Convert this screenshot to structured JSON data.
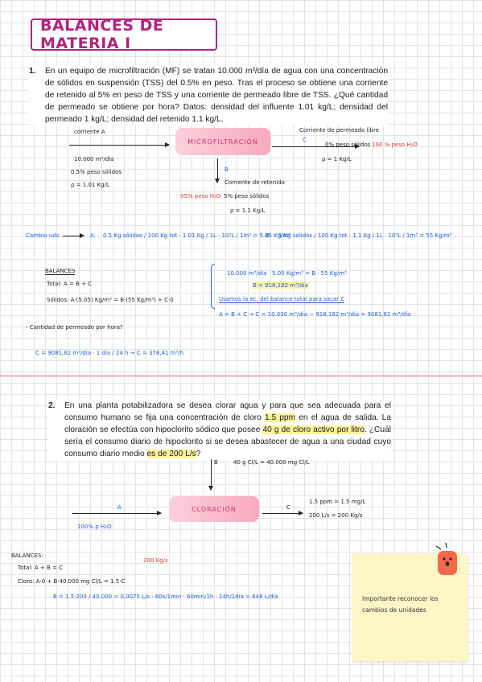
{
  "title": "BALANCES DE MATERIA Ⅰ",
  "problem1": {
    "number": "1.",
    "text": "En un equipo de microfiltración (MF) se tratan 10.000 m³/día de agua con una concentración de sólidos en suspensión (TSS) del 0.5% en peso. Tras el proceso se obtiene una corriente de retenido al 5% en peso de TSS y una corriente de permeado libre de TSS. ¿Qué cantidad de permeado se obtiene por hora? Datos: densidad del influente 1.01 kg/L; densidad del permeado 1 kg/L; densidad del retenido 1.1 kg/L."
  },
  "diagram1": {
    "box": "MICROFILTRACIÓN",
    "inlet_label": "corriente A",
    "inlet_flow": "10.000 m³/día",
    "inlet_solids": "0.5% peso sólidos",
    "inlet_density": "ρ = 1.01 Kg/L",
    "out_c_label": "Corriente de permeado libre",
    "out_c_letter": "C",
    "out_c_comp_1": "0% peso sólidos",
    "out_c_comp_2": "100 % peso H₂O",
    "out_c_density": "ρ = 1 Kg/L",
    "out_b_letter": "B",
    "out_b_label": "Corriente de retenido",
    "out_b_comp_1": "95% peso H₂O",
    "out_b_comp_2": "5% peso sólidos",
    "out_b_density": "ρ = 1.1 Kg/L"
  },
  "units_change": {
    "label": "Cambio uds",
    "a_letter": "A:",
    "a_calc": "0.5 Kg sólidos / 100 Kg tot · 1.01 Kg / 1L · 10³L / 1m³ = 5.05 Kg/m³",
    "b_letter": "B:",
    "b_calc": "5 Kg sólidos / 100 Kg tot · 1.1 Kg / 1L · 10³L / 1m³ = 55 Kg/m³"
  },
  "balances1": {
    "heading": "BALANCES",
    "total": "Total: A = B + C",
    "solids": "Sólidos: A·(5.05) Kg/m³ = B·(55 Kg/m³) + C·0",
    "eq1": "10.000 m³/día · 5.05 Kg/m³ = B · 55 Kg/m³",
    "eq_b": "B = 918,182 m³/día",
    "eq_note": "Usamos la ec. del balance total para sacar C",
    "eq_c": "A = B + C → C = 10.000 m³/día − 918,182 m³/día = 9081,82 m³/día",
    "question": "- Cantidad de permeado por hora?",
    "answer": "C = 9081,82 m³/día · 1 día / 24 h → C = 378,41 m³/h"
  },
  "problem2": {
    "number": "2.",
    "text_a": "En una planta potabilizadora se desea clorar agua y para que sea adecuada para el consumo humano se fija una concentración de cloro ",
    "hl_1": "1.5 ppm",
    "text_b": " en el agua de salida. La cloración se efectúa con hipoclorito sódico que posee ",
    "hl_2": "40 g de cloro activo por litro",
    "text_c": ". ¿Cuál sería el consumo diario de hipoclorito si se desea abastecer de agua a una ciudad cuyo consumo diario medio ",
    "hl_3": "es de 200 L/s",
    "text_d": "?"
  },
  "diagram2": {
    "box": "CLORACIÓN",
    "b_letter": "B",
    "b_value": "40 g Cl/L = 40.000 mg Cl/L",
    "a_letter": "A",
    "a_comp": "100% p H₂O",
    "c_letter": "C",
    "c_ppm": "1.5 ppm = 1.5 mg/L",
    "c_flow": "200 L/s = 200 Kg/s"
  },
  "balances2": {
    "heading": "BALANCES:",
    "total": "Total: A + B = C",
    "chlorine": "Cloro: A·0 + B·40.000 mg Cl/L = 1.5·C",
    "note": "200 Kg/s",
    "result": "B = 1.5·200 / 40.000 = 0,0075 L/s · 60s/1min · 60min/1h · 24h/1día = 648 L/día"
  },
  "sticky": {
    "text": "Importante reconocer los cambios de unidades"
  },
  "colors": {
    "title": "#b0247e",
    "accent_blue": "#1f5fd6",
    "accent_red": "#e53b2c",
    "highlight": "#fff29a",
    "divider": "#e2569a"
  }
}
